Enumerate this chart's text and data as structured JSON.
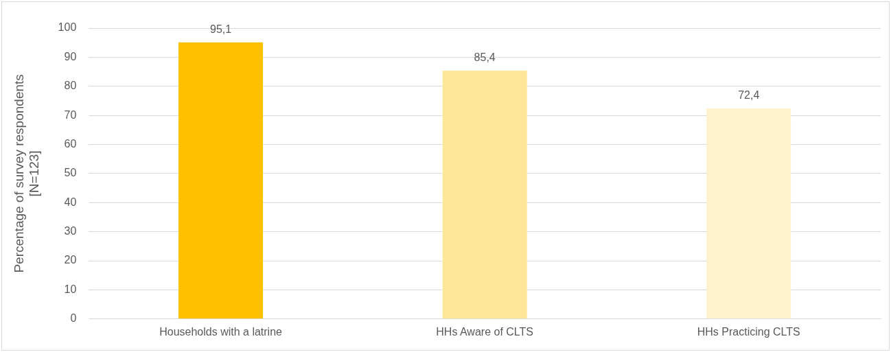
{
  "chart_data": {
    "type": "bar",
    "ylabel": "Percentage of survey respondents\n[N=123]",
    "categories": [
      "Households with a latrine",
      "HHs Aware of CLTS",
      "HHs Practicing CLTS"
    ],
    "values": [
      95.1,
      85.4,
      72.4
    ],
    "colors": [
      "#ffc000",
      "#ffe699",
      "#fff2cc"
    ],
    "value_labels": [
      "95,1",
      "85,4",
      "72,4"
    ],
    "ylim": [
      0,
      100
    ],
    "yticks": [
      0,
      10,
      20,
      30,
      40,
      50,
      60,
      70,
      80,
      90,
      100
    ],
    "grid": "y",
    "legend": false
  }
}
